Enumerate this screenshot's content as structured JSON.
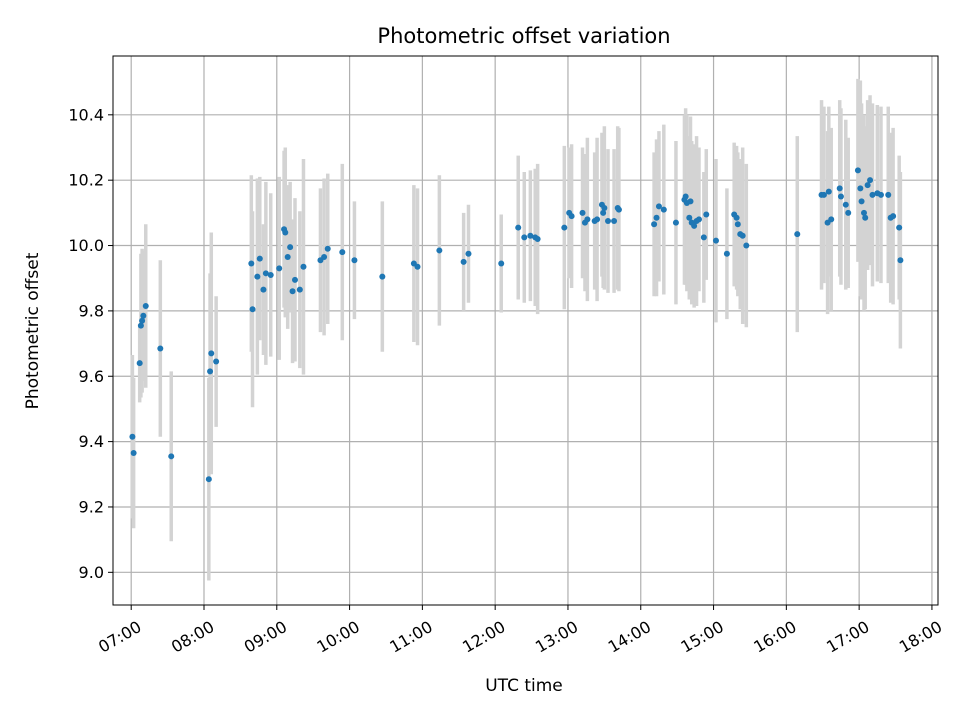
{
  "chart_data": {
    "type": "scatter",
    "title": "Photometric offset variation",
    "xlabel": "UTC time",
    "ylabel": "Photometric offset",
    "xlim": [
      "06:45",
      "18:05"
    ],
    "ylim": [
      8.9,
      10.58
    ],
    "grid": true,
    "x_ticks": [
      "07:00",
      "08:00",
      "09:00",
      "10:00",
      "11:00",
      "12:00",
      "13:00",
      "14:00",
      "15:00",
      "16:00",
      "17:00",
      "18:00"
    ],
    "y_ticks": [
      9.0,
      9.2,
      9.4,
      9.6,
      9.8,
      10.0,
      10.2,
      10.4
    ],
    "y_tick_labels": [
      "9.0",
      "9.2",
      "9.4",
      "9.6",
      "9.8",
      "10.0",
      "10.2",
      "10.4"
    ],
    "colors": {
      "point": "#1f77b4",
      "errorbar": "#d3d3d3",
      "grid": "#b0b0b0"
    },
    "series": [
      {
        "points": [
          {
            "x": "07:01",
            "y": 9.415,
            "err": 0.25
          },
          {
            "x": "07:02",
            "y": 9.365,
            "err": 0.23
          },
          {
            "x": "07:07",
            "y": 9.64,
            "err": 0.12
          },
          {
            "x": "07:08",
            "y": 9.755,
            "err": 0.22
          },
          {
            "x": "07:09",
            "y": 9.77,
            "err": 0.22
          },
          {
            "x": "07:10",
            "y": 9.785,
            "err": 0.2
          },
          {
            "x": "07:12",
            "y": 9.815,
            "err": 0.25
          },
          {
            "x": "07:24",
            "y": 9.685,
            "err": 0.27
          },
          {
            "x": "07:33",
            "y": 9.355,
            "err": 0.26
          },
          {
            "x": "08:04",
            "y": 9.285,
            "err": 0.31
          },
          {
            "x": "08:05",
            "y": 9.615,
            "err": 0.3
          },
          {
            "x": "08:06",
            "y": 9.67,
            "err": 0.37
          },
          {
            "x": "08:10",
            "y": 9.645,
            "err": 0.2
          },
          {
            "x": "08:39",
            "y": 9.945,
            "err": 0.27
          },
          {
            "x": "08:40",
            "y": 9.805,
            "err": 0.3
          },
          {
            "x": "08:44",
            "y": 9.905,
            "err": 0.3
          },
          {
            "x": "08:46",
            "y": 9.96,
            "err": 0.25
          },
          {
            "x": "08:49",
            "y": 9.865,
            "err": 0.2
          },
          {
            "x": "08:51",
            "y": 9.915,
            "err": 0.28
          },
          {
            "x": "08:55",
            "y": 9.91,
            "err": 0.25
          },
          {
            "x": "09:02",
            "y": 9.93,
            "err": 0.28
          },
          {
            "x": "09:06",
            "y": 10.05,
            "err": 0.24
          },
          {
            "x": "09:07",
            "y": 10.04,
            "err": 0.26
          },
          {
            "x": "09:09",
            "y": 9.965,
            "err": 0.22
          },
          {
            "x": "09:11",
            "y": 9.995,
            "err": 0.2
          },
          {
            "x": "09:13",
            "y": 9.86,
            "err": 0.22
          },
          {
            "x": "09:15",
            "y": 9.895,
            "err": 0.25
          },
          {
            "x": "09:19",
            "y": 9.865,
            "err": 0.24
          },
          {
            "x": "09:22",
            "y": 9.935,
            "err": 0.33
          },
          {
            "x": "09:36",
            "y": 9.955,
            "err": 0.22
          },
          {
            "x": "09:39",
            "y": 9.965,
            "err": 0.24
          },
          {
            "x": "09:42",
            "y": 9.99,
            "err": 0.23
          },
          {
            "x": "09:54",
            "y": 9.98,
            "err": 0.27
          },
          {
            "x": "10:04",
            "y": 9.955,
            "err": 0.18
          },
          {
            "x": "10:27",
            "y": 9.905,
            "err": 0.23
          },
          {
            "x": "10:53",
            "y": 9.945,
            "err": 0.24
          },
          {
            "x": "10:56",
            "y": 9.935,
            "err": 0.24
          },
          {
            "x": "11:14",
            "y": 9.985,
            "err": 0.23
          },
          {
            "x": "11:34",
            "y": 9.95,
            "err": 0.15
          },
          {
            "x": "11:38",
            "y": 9.975,
            "err": 0.15
          },
          {
            "x": "12:05",
            "y": 9.945,
            "err": 0.15
          },
          {
            "x": "12:19",
            "y": 10.055,
            "err": 0.22
          },
          {
            "x": "12:24",
            "y": 10.025,
            "err": 0.2
          },
          {
            "x": "12:29",
            "y": 10.03,
            "err": 0.2
          },
          {
            "x": "12:33",
            "y": 10.025,
            "err": 0.21
          },
          {
            "x": "12:35",
            "y": 10.02,
            "err": 0.23
          },
          {
            "x": "12:57",
            "y": 10.055,
            "err": 0.25
          },
          {
            "x": "13:01",
            "y": 10.1,
            "err": 0.2
          },
          {
            "x": "13:03",
            "y": 10.09,
            "err": 0.22
          },
          {
            "x": "13:12",
            "y": 10.1,
            "err": 0.2
          },
          {
            "x": "13:14",
            "y": 10.07,
            "err": 0.21
          },
          {
            "x": "13:16",
            "y": 10.08,
            "err": 0.25
          },
          {
            "x": "13:22",
            "y": 10.075,
            "err": 0.21
          },
          {
            "x": "13:24",
            "y": 10.08,
            "err": 0.25
          },
          {
            "x": "13:28",
            "y": 10.125,
            "err": 0.22
          },
          {
            "x": "13:29",
            "y": 10.1,
            "err": 0.23
          },
          {
            "x": "13:30",
            "y": 10.115,
            "err": 0.25
          },
          {
            "x": "13:33",
            "y": 10.075,
            "err": 0.22
          },
          {
            "x": "13:38",
            "y": 10.075,
            "err": 0.22
          },
          {
            "x": "13:41",
            "y": 10.115,
            "err": 0.25
          },
          {
            "x": "13:42",
            "y": 10.11,
            "err": 0.25
          },
          {
            "x": "14:11",
            "y": 10.065,
            "err": 0.22
          },
          {
            "x": "14:13",
            "y": 10.085,
            "err": 0.24
          },
          {
            "x": "14:15",
            "y": 10.12,
            "err": 0.23
          },
          {
            "x": "14:19",
            "y": 10.11,
            "err": 0.26
          },
          {
            "x": "14:29",
            "y": 10.07,
            "err": 0.25
          },
          {
            "x": "14:36",
            "y": 10.14,
            "err": 0.26
          },
          {
            "x": "14:37",
            "y": 10.15,
            "err": 0.27
          },
          {
            "x": "14:38",
            "y": 10.13,
            "err": 0.27
          },
          {
            "x": "14:40",
            "y": 10.085,
            "err": 0.25
          },
          {
            "x": "14:41",
            "y": 10.135,
            "err": 0.26
          },
          {
            "x": "14:42",
            "y": 10.07,
            "err": 0.25
          },
          {
            "x": "14:44",
            "y": 10.06,
            "err": 0.25
          },
          {
            "x": "14:46",
            "y": 10.075,
            "err": 0.26
          },
          {
            "x": "14:48",
            "y": 10.08,
            "err": 0.22
          },
          {
            "x": "14:52",
            "y": 10.025,
            "err": 0.2
          },
          {
            "x": "14:54",
            "y": 10.095,
            "err": 0.2
          },
          {
            "x": "15:02",
            "y": 10.015,
            "err": 0.25
          },
          {
            "x": "15:11",
            "y": 9.975,
            "err": 0.2
          },
          {
            "x": "15:17",
            "y": 10.095,
            "err": 0.22
          },
          {
            "x": "15:19",
            "y": 10.085,
            "err": 0.22
          },
          {
            "x": "15:20",
            "y": 10.065,
            "err": 0.22
          },
          {
            "x": "15:22",
            "y": 10.035,
            "err": 0.23
          },
          {
            "x": "15:24",
            "y": 10.03,
            "err": 0.27
          },
          {
            "x": "15:27",
            "y": 10.0,
            "err": 0.25
          },
          {
            "x": "16:09",
            "y": 10.035,
            "err": 0.3
          },
          {
            "x": "16:29",
            "y": 10.155,
            "err": 0.29
          },
          {
            "x": "16:31",
            "y": 10.155,
            "err": 0.27
          },
          {
            "x": "16:34",
            "y": 10.07,
            "err": 0.28
          },
          {
            "x": "16:35",
            "y": 10.165,
            "err": 0.26
          },
          {
            "x": "16:37",
            "y": 10.08,
            "err": 0.28
          },
          {
            "x": "16:44",
            "y": 10.175,
            "err": 0.27
          },
          {
            "x": "16:45",
            "y": 10.15,
            "err": 0.27
          },
          {
            "x": "16:49",
            "y": 10.125,
            "err": 0.26
          },
          {
            "x": "16:51",
            "y": 10.1,
            "err": 0.23
          },
          {
            "x": "16:59",
            "y": 10.23,
            "err": 0.28
          },
          {
            "x": "17:01",
            "y": 10.175,
            "err": 0.33
          },
          {
            "x": "17:02",
            "y": 10.135,
            "err": 0.3
          },
          {
            "x": "17:04",
            "y": 10.1,
            "err": 0.3
          },
          {
            "x": "17:05",
            "y": 10.085,
            "err": 0.28
          },
          {
            "x": "17:07",
            "y": 10.185,
            "err": 0.26
          },
          {
            "x": "17:09",
            "y": 10.2,
            "err": 0.26
          },
          {
            "x": "17:11",
            "y": 10.155,
            "err": 0.28
          },
          {
            "x": "17:15",
            "y": 10.16,
            "err": 0.27
          },
          {
            "x": "17:18",
            "y": 10.155,
            "err": 0.27
          },
          {
            "x": "17:24",
            "y": 10.155,
            "err": 0.27
          },
          {
            "x": "17:26",
            "y": 10.085,
            "err": 0.26
          },
          {
            "x": "17:28",
            "y": 10.09,
            "err": 0.27
          },
          {
            "x": "17:33",
            "y": 10.055,
            "err": 0.22
          },
          {
            "x": "17:34",
            "y": 9.955,
            "err": 0.27
          }
        ]
      }
    ]
  }
}
